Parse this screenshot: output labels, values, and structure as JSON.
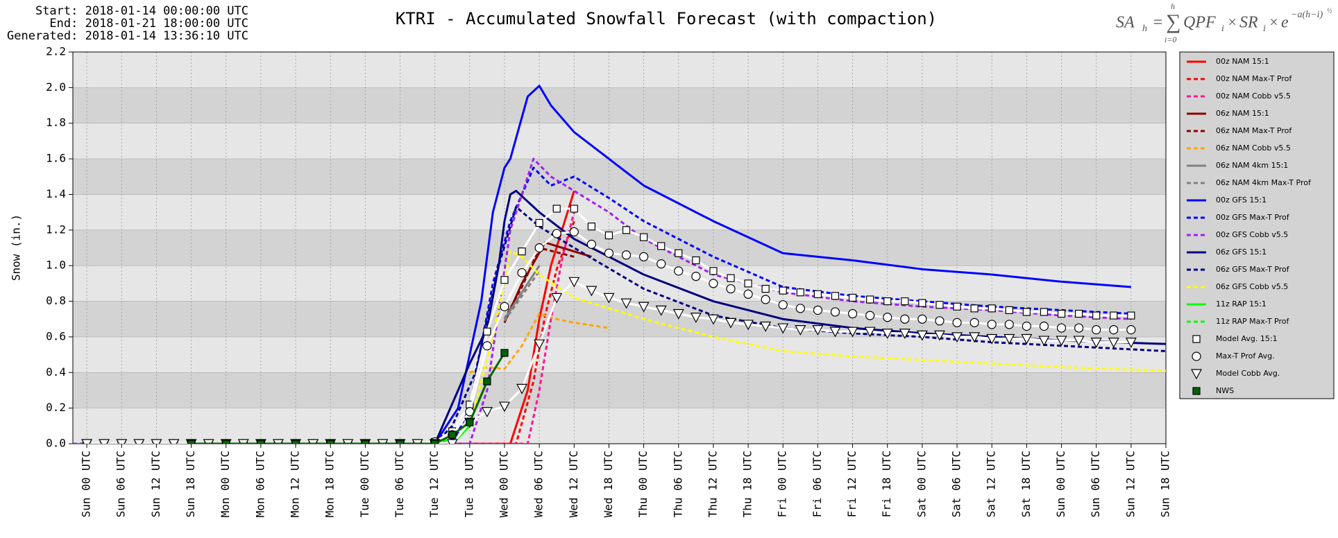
{
  "header": {
    "start": "Start: 2018-01-14 00:00:00 UTC",
    "end": "End: 2018-01-21 18:00:00 UTC",
    "generated": "Generated: 2018-01-14 13:36:10 UTC"
  },
  "formula": {
    "lhs": "SA",
    "lhs_sub": "h",
    "eq": "=",
    "sigma": "∑",
    "sigma_top": "h",
    "sigma_bottom": "i=0",
    "body": "QPF",
    "body_sub": "i",
    "times1": "×",
    "sr": "SR",
    "sr_sub": "i",
    "times2": "×",
    "e": "e",
    "exp": "−a(h−i)",
    "exp_pow": "½"
  },
  "chart_data": {
    "type": "line",
    "title": "KTRI - Accumulated Snowfall Forecast (with compaction)",
    "y_label": "Snow (in.)",
    "xlim": [
      -2.4,
      186
    ],
    "ylim": [
      0,
      2.2
    ],
    "grid": true,
    "yticks": [
      {
        "value": 0,
        "label": "0.0"
      },
      0.2,
      0.4,
      0.6,
      0.8,
      {
        "value": 1,
        "label": "1.0"
      },
      1.2,
      1.4,
      1.6,
      1.8,
      {
        "value": 2,
        "label": "2.0"
      },
      2.2
    ],
    "xticks": [
      {
        "value": 0,
        "label": "Sun 00 UTC"
      },
      {
        "value": 6,
        "label": "Sun 06 UTC"
      },
      {
        "value": 12,
        "label": "Sun 12 UTC"
      },
      {
        "value": 18,
        "label": "Sun 18 UTC"
      },
      {
        "value": 24,
        "label": "Mon 00 UTC"
      },
      {
        "value": 30,
        "label": "Mon 06 UTC"
      },
      {
        "value": 36,
        "label": "Mon 12 UTC"
      },
      {
        "value": 42,
        "label": "Mon 18 UTC"
      },
      {
        "value": 48,
        "label": "Tue 00 UTC"
      },
      {
        "value": 54,
        "label": "Tue 06 UTC"
      },
      {
        "value": 60,
        "label": "Tue 12 UTC"
      },
      {
        "value": 66,
        "label": "Tue 18 UTC"
      },
      {
        "value": 72,
        "label": "Wed 00 UTC"
      },
      {
        "value": 78,
        "label": "Wed 06 UTC"
      },
      {
        "value": 84,
        "label": "Wed 12 UTC"
      },
      {
        "value": 90,
        "label": "Wed 18 UTC"
      },
      {
        "value": 96,
        "label": "Thu 00 UTC"
      },
      {
        "value": 102,
        "label": "Thu 06 UTC"
      },
      {
        "value": 108,
        "label": "Thu 12 UTC"
      },
      {
        "value": 114,
        "label": "Thu 18 UTC"
      },
      {
        "value": 120,
        "label": "Fri 00 UTC"
      },
      {
        "value": 126,
        "label": "Fri 06 UTC"
      },
      {
        "value": 132,
        "label": "Fri 12 UTC"
      },
      {
        "value": 138,
        "label": "Fri 18 UTC"
      },
      {
        "value": 144,
        "label": "Sat 00 UTC"
      },
      {
        "value": 150,
        "label": "Sat 06 UTC"
      },
      {
        "value": 156,
        "label": "Sat 12 UTC"
      },
      {
        "value": 162,
        "label": "Sat 18 UTC"
      },
      {
        "value": 168,
        "label": "Sun 00 UTC"
      },
      {
        "value": 174,
        "label": "Sun 06 UTC"
      },
      {
        "value": 180,
        "label": "Sun 12 UTC"
      },
      {
        "value": 186,
        "label": "Sun 18 UTC"
      }
    ],
    "series": [
      {
        "name": "00z NAM 15:1",
        "color": "#ff0000",
        "style": "solid",
        "x": [
          63,
          73,
          76,
          78,
          80,
          84
        ],
        "values": [
          0,
          0,
          0.3,
          0.7,
          1.0,
          1.42
        ]
      },
      {
        "name": "00z NAM Max-T Prof",
        "color": "#ff0000",
        "style": "dashed",
        "x": [
          64,
          74,
          77,
          79,
          81,
          84
        ],
        "values": [
          0,
          0,
          0.35,
          0.72,
          0.98,
          1.25
        ]
      },
      {
        "name": "00z NAM Cobb v5.5",
        "color": "#ff1493",
        "style": "dashed",
        "x": [
          65,
          76,
          78,
          80,
          82,
          84
        ],
        "values": [
          0,
          0,
          0.3,
          0.7,
          1.05,
          1.3
        ]
      },
      {
        "name": "06z NAM 15:1",
        "color": "#8b0000",
        "style": "solid",
        "x": [
          72,
          75,
          79,
          84,
          87
        ],
        "values": [
          0.68,
          0.9,
          1.13,
          1.08,
          1.05
        ]
      },
      {
        "name": "06z NAM Max-T Prof",
        "color": "#8b0000",
        "style": "dashed",
        "x": [
          72,
          75,
          78,
          84
        ],
        "values": [
          0.7,
          0.88,
          1.1,
          1.05
        ]
      },
      {
        "name": "06z NAM Cobb v5.5",
        "color": "#ffa500",
        "style": "dashed",
        "x": [
          66,
          69,
          72,
          75,
          78,
          81,
          84,
          90
        ],
        "values": [
          0.4,
          0.43,
          0.42,
          0.55,
          0.73,
          0.7,
          0.68,
          0.65
        ]
      },
      {
        "name": "06z NAM 4km 15:1",
        "color": "#808080",
        "style": "solid",
        "x": [
          72,
          75,
          78
        ],
        "values": [
          0.7,
          0.85,
          1.0
        ]
      },
      {
        "name": "06z NAM 4km Max-T Prof",
        "color": "#808080",
        "style": "dashed",
        "x": [
          72,
          75,
          78
        ],
        "values": [
          0.69,
          0.83,
          0.97
        ]
      },
      {
        "name": "00z GFS 15:1",
        "color": "#0000ff",
        "style": "solid",
        "x": [
          0,
          60,
          64,
          68,
          70,
          72,
          73,
          76,
          78,
          80,
          84,
          90,
          96,
          108,
          120,
          132,
          144,
          156,
          168,
          180
        ],
        "values": [
          0,
          0,
          0.2,
          0.8,
          1.3,
          1.55,
          1.6,
          1.95,
          2.01,
          1.9,
          1.75,
          1.6,
          1.45,
          1.25,
          1.07,
          1.03,
          0.98,
          0.95,
          0.91,
          0.88
        ]
      },
      {
        "name": "00z GFS Max-T Prof",
        "color": "#0000ff",
        "style": "dashed",
        "x": [
          0,
          63,
          66,
          70,
          73,
          77,
          80,
          84,
          90,
          96,
          108,
          120,
          132,
          144,
          156,
          168,
          180
        ],
        "values": [
          0,
          0,
          0.2,
          0.9,
          1.25,
          1.55,
          1.45,
          1.5,
          1.38,
          1.25,
          1.05,
          0.88,
          0.83,
          0.8,
          0.77,
          0.75,
          0.73
        ]
      },
      {
        "name": "00z GFS Cobb v5.5",
        "color": "#a020f0",
        "style": "dashed",
        "x": [
          -2.4,
          66,
          69,
          73,
          77,
          80,
          84,
          90,
          96,
          108,
          120,
          132,
          144,
          156,
          168,
          180
        ],
        "values": [
          0,
          0,
          0.3,
          1.2,
          1.6,
          1.5,
          1.42,
          1.3,
          1.15,
          0.95,
          0.85,
          0.8,
          0.77,
          0.75,
          0.72,
          0.7
        ]
      },
      {
        "name": "06z GFS 15:1",
        "color": "#000080",
        "style": "solid",
        "x": [
          60,
          62,
          66,
          69,
          71,
          72,
          73,
          74,
          78,
          84,
          90,
          96,
          108,
          120,
          132,
          144,
          156,
          168,
          186
        ],
        "values": [
          0,
          0.15,
          0.45,
          0.65,
          1.0,
          1.25,
          1.4,
          1.42,
          1.3,
          1.15,
          1.05,
          0.95,
          0.8,
          0.7,
          0.65,
          0.62,
          0.6,
          0.58,
          0.56
        ]
      },
      {
        "name": "06z GFS Max-T Prof",
        "color": "#000080",
        "style": "dashed",
        "x": [
          60,
          63,
          67,
          71,
          74,
          78,
          84,
          96,
          108,
          120,
          132,
          144,
          156,
          168,
          186
        ],
        "values": [
          0,
          0.1,
          0.4,
          1.0,
          1.33,
          1.22,
          1.1,
          0.87,
          0.72,
          0.65,
          0.62,
          0.6,
          0.57,
          0.55,
          0.52
        ]
      },
      {
        "name": "06z GFS Cobb v5.5",
        "color": "#ffff00",
        "style": "dashed",
        "x": [
          63,
          66,
          70,
          73,
          75,
          78,
          84,
          96,
          108,
          120,
          132,
          144,
          156,
          168,
          186
        ],
        "values": [
          0,
          0.1,
          0.6,
          1.08,
          1.05,
          0.95,
          0.82,
          0.7,
          0.6,
          0.52,
          0.49,
          0.47,
          0.45,
          0.43,
          0.41
        ]
      },
      {
        "name": "11z RAP 15:1",
        "color": "#00ff00",
        "style": "solid",
        "x": [
          59,
          63,
          66
        ],
        "values": [
          0,
          0,
          0.1
        ]
      },
      {
        "name": "11z RAP Max-T Prof",
        "color": "#00ff00",
        "style": "dashed",
        "x": [
          59,
          64
        ],
        "values": [
          0,
          0.03
        ]
      },
      {
        "name": "Model Avg. 15:1",
        "color": "#ffffff",
        "style": "solid",
        "marker": "square",
        "x": [
          0,
          3,
          6,
          9,
          12,
          15,
          18,
          21,
          24,
          27,
          30,
          33,
          36,
          39,
          42,
          45,
          48,
          51,
          54,
          57,
          60,
          63,
          66,
          69,
          72,
          75,
          78,
          81,
          84,
          87,
          90,
          93,
          96,
          99,
          102,
          105,
          108,
          111,
          114,
          117,
          120,
          123,
          126,
          129,
          132,
          135,
          138,
          141,
          144,
          147,
          150,
          153,
          156,
          159,
          162,
          165,
          168,
          171,
          174,
          177,
          180
        ],
        "values": [
          0,
          0,
          0,
          0,
          0,
          0,
          0,
          0,
          0,
          0,
          0,
          0,
          0,
          0,
          0,
          0,
          0,
          0,
          0,
          0,
          0.01,
          0.07,
          0.22,
          0.63,
          0.92,
          1.08,
          1.24,
          1.32,
          1.32,
          1.22,
          1.17,
          1.2,
          1.16,
          1.11,
          1.07,
          1.03,
          0.97,
          0.93,
          0.9,
          0.87,
          0.86,
          0.85,
          0.84,
          0.83,
          0.82,
          0.81,
          0.8,
          0.8,
          0.79,
          0.78,
          0.77,
          0.76,
          0.76,
          0.75,
          0.74,
          0.74,
          0.73,
          0.73,
          0.72,
          0.72,
          0.72
        ]
      },
      {
        "name": "Max-T Prof Avg.",
        "color": "#ffffff",
        "style": "solid",
        "marker": "circle",
        "x": [
          0,
          3,
          6,
          9,
          12,
          15,
          18,
          21,
          24,
          27,
          30,
          33,
          36,
          39,
          42,
          45,
          48,
          51,
          54,
          57,
          60,
          63,
          66,
          69,
          72,
          75,
          78,
          81,
          84,
          87,
          90,
          93,
          96,
          99,
          102,
          105,
          108,
          111,
          114,
          117,
          120,
          123,
          126,
          129,
          132,
          135,
          138,
          141,
          144,
          147,
          150,
          153,
          156,
          159,
          162,
          165,
          168,
          171,
          174,
          177,
          180
        ],
        "values": [
          0,
          0,
          0,
          0,
          0,
          0,
          0,
          0,
          0,
          0,
          0,
          0,
          0,
          0,
          0,
          0,
          0,
          0,
          0,
          0,
          0.01,
          0.05,
          0.18,
          0.55,
          0.77,
          0.96,
          1.1,
          1.18,
          1.19,
          1.12,
          1.07,
          1.06,
          1.05,
          1.01,
          0.97,
          0.94,
          0.9,
          0.87,
          0.84,
          0.81,
          0.78,
          0.76,
          0.75,
          0.74,
          0.73,
          0.72,
          0.71,
          0.7,
          0.7,
          0.69,
          0.68,
          0.68,
          0.67,
          0.67,
          0.66,
          0.66,
          0.65,
          0.65,
          0.64,
          0.64,
          0.64
        ]
      },
      {
        "name": "Model Cobb Avg.",
        "color": "#ffffff",
        "style": "solid",
        "marker": "triangle",
        "x": [
          0,
          3,
          6,
          9,
          12,
          15,
          18,
          21,
          24,
          27,
          30,
          33,
          36,
          39,
          42,
          45,
          48,
          51,
          54,
          57,
          60,
          63,
          66,
          69,
          72,
          75,
          78,
          81,
          84,
          87,
          90,
          93,
          96,
          99,
          102,
          105,
          108,
          111,
          114,
          117,
          120,
          123,
          126,
          129,
          132,
          135,
          138,
          141,
          144,
          147,
          150,
          153,
          156,
          159,
          162,
          165,
          168,
          171,
          174,
          177,
          180
        ],
        "values": [
          0,
          0,
          0,
          0,
          0,
          0,
          0,
          0,
          0,
          0,
          0,
          0,
          0,
          0,
          0,
          0,
          0,
          0,
          0,
          0,
          0,
          0,
          0.12,
          0.18,
          0.21,
          0.31,
          0.56,
          0.82,
          0.91,
          0.86,
          0.82,
          0.79,
          0.77,
          0.75,
          0.73,
          0.71,
          0.7,
          0.68,
          0.67,
          0.66,
          0.65,
          0.64,
          0.64,
          0.63,
          0.63,
          0.63,
          0.62,
          0.62,
          0.61,
          0.61,
          0.6,
          0.6,
          0.59,
          0.59,
          0.59,
          0.58,
          0.58,
          0.58,
          0.57,
          0.57,
          0.57
        ]
      },
      {
        "name": "NWS",
        "color": "#006400",
        "style": "solid",
        "marker": "filled-square",
        "x": [
          18,
          24,
          30,
          36,
          42,
          48,
          54,
          60,
          63,
          66,
          69,
          72
        ],
        "values": [
          0,
          0,
          0,
          0,
          0,
          0,
          0,
          0,
          0.05,
          0.12,
          0.35,
          0.51
        ]
      }
    ]
  }
}
